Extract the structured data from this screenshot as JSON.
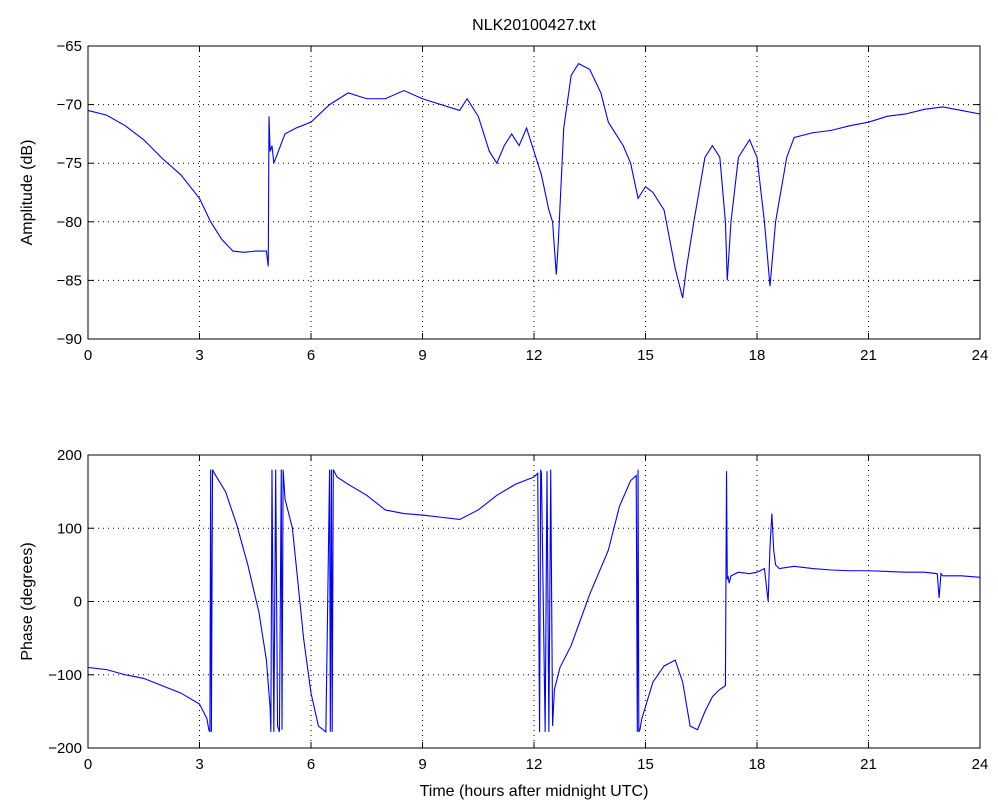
{
  "title": "NLK20100427.txt",
  "colors": {
    "line": "#0000ff",
    "axes": "#000000",
    "grid": "#000000",
    "background": "#ffffff"
  },
  "chart_data": [
    {
      "type": "line",
      "title": "NLK20100427.txt",
      "xlabel": "",
      "ylabel": "Amplitude (dB)",
      "xlim": [
        0,
        24
      ],
      "ylim": [
        -90,
        -65
      ],
      "xticks": [
        0,
        3,
        6,
        9,
        12,
        15,
        18,
        21,
        24
      ],
      "yticks": [
        -90,
        -85,
        -80,
        -75,
        -70,
        -65
      ],
      "xtick_labels": [
        "0",
        "3",
        "6",
        "9",
        "12",
        "15",
        "18",
        "21",
        "24"
      ],
      "ytick_labels": [
        "−90",
        "−85",
        "−80",
        "−75",
        "−70",
        "−65"
      ],
      "grid": true,
      "series": [
        {
          "x": [
            0,
            0.5,
            1,
            1.5,
            2,
            2.5,
            3,
            3.3,
            3.6,
            3.9,
            4.2,
            4.5,
            4.8,
            4.85,
            4.87,
            4.9,
            4.95,
            5.0,
            5.3,
            5.6,
            6,
            6.5,
            7,
            7.5,
            8,
            8.5,
            9,
            9.5,
            10,
            10.2,
            10.5,
            10.8,
            11,
            11.2,
            11.4,
            11.6,
            11.8,
            12,
            12.2,
            12.4,
            12.5,
            12.6,
            12.65,
            12.8,
            13,
            13.2,
            13.5,
            13.8,
            14,
            14.2,
            14.4,
            14.6,
            14.8,
            15,
            15.2,
            15.5,
            15.8,
            16,
            16.1,
            16.3,
            16.6,
            16.8,
            17,
            17.15,
            17.2,
            17.3,
            17.5,
            17.8,
            18,
            18.2,
            18.35,
            18.5,
            18.8,
            19,
            19.5,
            20,
            20.5,
            21,
            21.5,
            22,
            22.5,
            23,
            23.5,
            24
          ],
          "y": [
            -70.5,
            -70.9,
            -71.8,
            -73,
            -74.6,
            -76,
            -78,
            -80,
            -81.5,
            -82.5,
            -82.6,
            -82.5,
            -82.5,
            -83.8,
            -71,
            -74,
            -73.5,
            -75,
            -72.5,
            -72,
            -71.5,
            -70,
            -69,
            -69.5,
            -69.5,
            -68.8,
            -69.5,
            -70,
            -70.5,
            -69.5,
            -71,
            -74,
            -75,
            -73.5,
            -72.5,
            -73.5,
            -72,
            -74,
            -76,
            -79,
            -80,
            -84.5,
            -82,
            -72,
            -67.5,
            -66.5,
            -67,
            -69,
            -71.5,
            -72.5,
            -73.5,
            -75,
            -78,
            -77,
            -77.5,
            -79,
            -84,
            -86.5,
            -84,
            -80,
            -74.5,
            -73.5,
            -74.5,
            -80,
            -85,
            -80,
            -74.5,
            -73,
            -74.5,
            -80,
            -85.5,
            -80,
            -74.5,
            -72.8,
            -72.4,
            -72.2,
            -71.8,
            -71.5,
            -71,
            -70.8,
            -70.4,
            -70.2,
            -70.5,
            -70.8
          ]
        }
      ]
    },
    {
      "type": "line",
      "title": "",
      "xlabel": "Time (hours after midnight UTC)",
      "ylabel": "Phase (degrees)",
      "xlim": [
        0,
        24
      ],
      "ylim": [
        -200,
        200
      ],
      "xticks": [
        0,
        3,
        6,
        9,
        12,
        15,
        18,
        21,
        24
      ],
      "yticks": [
        -200,
        -100,
        0,
        100,
        200
      ],
      "xtick_labels": [
        "0",
        "3",
        "6",
        "9",
        "12",
        "15",
        "18",
        "21",
        "24"
      ],
      "ytick_labels": [
        "−200",
        "−100",
        "0",
        "100",
        "200"
      ],
      "grid": true,
      "series": [
        {
          "x": [
            0,
            0.5,
            1,
            1.5,
            2,
            2.5,
            3,
            3.2,
            3.25,
            3.28,
            3.3,
            3.32,
            3.35,
            3.4,
            3.7,
            4,
            4.3,
            4.6,
            4.8,
            4.9,
            4.92,
            4.95,
            5.0,
            5.05,
            5.1,
            5.15,
            5.2,
            5.22,
            5.25,
            5.3,
            5.5,
            5.8,
            6,
            6.2,
            6.4,
            6.5,
            6.52,
            6.55,
            6.57,
            6.6,
            6.7,
            7,
            7.5,
            8,
            8.5,
            9,
            9.5,
            10,
            10.5,
            11,
            11.5,
            12,
            12.1,
            12.15,
            12.18,
            12.2,
            12.3,
            12.35,
            12.4,
            12.45,
            12.5,
            12.55,
            12.6,
            12.65,
            12.7,
            13,
            13.5,
            14,
            14.3,
            14.6,
            14.75,
            14.78,
            14.8,
            14.82,
            14.85,
            14.9,
            15.2,
            15.5,
            15.8,
            16,
            16.2,
            16.4,
            16.6,
            16.8,
            17,
            17.15,
            17.18,
            17.2,
            17.22,
            17.25,
            17.3,
            17.5,
            17.8,
            18,
            18.2,
            18.3,
            18.35,
            18.4,
            18.45,
            18.5,
            18.6,
            19,
            19.5,
            20,
            20.5,
            21,
            21.5,
            22,
            22.5,
            22.85,
            22.9,
            22.95,
            23,
            23.5,
            24
          ],
          "y": [
            -90,
            -93,
            -100,
            -105,
            -115,
            -125,
            -140,
            -160,
            -175,
            -178,
            180,
            -178,
            180,
            175,
            150,
            105,
            50,
            -15,
            -80,
            -145,
            -178,
            180,
            -178,
            180,
            -170,
            -178,
            180,
            -175,
            180,
            140,
            100,
            -50,
            -125,
            -170,
            -178,
            180,
            -178,
            180,
            -178,
            180,
            170,
            160,
            145,
            125,
            120,
            118,
            115,
            112,
            125,
            145,
            160,
            170,
            175,
            -178,
            180,
            175,
            -178,
            178,
            -178,
            180,
            -170,
            -120,
            -110,
            -100,
            -90,
            -60,
            10,
            70,
            130,
            165,
            172,
            -178,
            180,
            -178,
            -175,
            -160,
            -110,
            -88,
            -80,
            -110,
            -170,
            -175,
            -150,
            -130,
            -120,
            -115,
            178,
            30,
            35,
            25,
            35,
            40,
            38,
            40,
            45,
            0,
            75,
            120,
            70,
            50,
            45,
            48,
            45,
            43,
            42,
            42,
            41,
            40,
            40,
            38,
            5,
            38,
            35,
            35,
            33
          ]
        }
      ]
    }
  ]
}
